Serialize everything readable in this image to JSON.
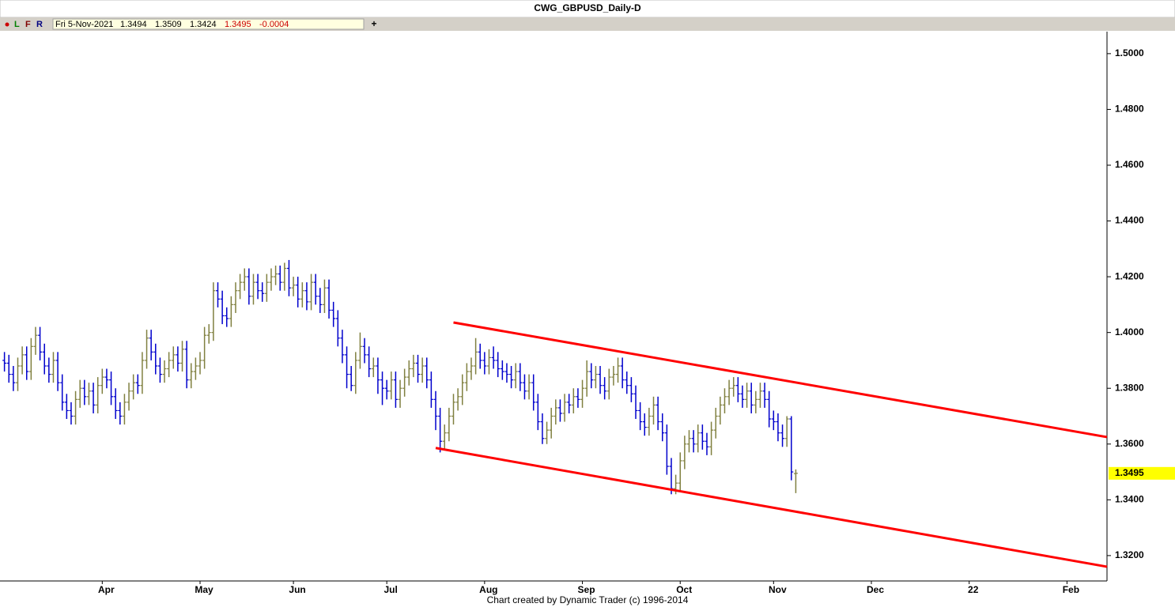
{
  "header": {
    "markers": [
      "L",
      "F",
      "R"
    ],
    "date": "Fri 5-Nov-2021",
    "open": "1.3494",
    "high": "1.3509",
    "low": "1.3424",
    "close": "1.3495",
    "change": "-0.0004"
  },
  "chart_data": {
    "type": "ohlc",
    "title": "CWG_GBPUSD_Daily-D",
    "caption": "Chart created by Dynamic Trader  (c) 1996-2014",
    "up_color": "#808040",
    "down_color": "#0000cc",
    "open": [
      1.39,
      1.389,
      1.385,
      1.382,
      1.388,
      1.392,
      1.386,
      1.395,
      1.399,
      1.393,
      1.388,
      1.385,
      1.39,
      1.382,
      1.375,
      1.372,
      1.37,
      1.376,
      1.38,
      1.377,
      1.379,
      1.374,
      1.381,
      1.384,
      1.383,
      1.377,
      1.372,
      1.37,
      1.375,
      1.379,
      1.382,
      1.381,
      1.39,
      1.398,
      1.393,
      1.388,
      1.385,
      1.387,
      1.39,
      1.392,
      1.389,
      1.394,
      1.383,
      1.386,
      1.388,
      1.39,
      1.399,
      1.4,
      1.415,
      1.412,
      1.406,
      1.405,
      1.41,
      1.415,
      1.418,
      1.42,
      1.413,
      1.418,
      1.415,
      1.414,
      1.418,
      1.42,
      1.421,
      1.418,
      1.423,
      1.416,
      1.417,
      1.412,
      1.415,
      1.411,
      1.418,
      1.413,
      1.41,
      1.416,
      1.408,
      1.405,
      1.398,
      1.392,
      1.385,
      1.381,
      1.39,
      1.395,
      1.392,
      1.387,
      1.388,
      1.383,
      1.38,
      1.379,
      1.383,
      1.376,
      1.38,
      1.384,
      1.387,
      1.389,
      1.385,
      1.388,
      1.383,
      1.376,
      1.37,
      1.361,
      1.364,
      1.37,
      1.375,
      1.377,
      1.382,
      1.386,
      1.388,
      1.393,
      1.39,
      1.388,
      1.391,
      1.39,
      1.387,
      1.386,
      1.385,
      1.383,
      1.386,
      1.382,
      1.379,
      1.382,
      1.375,
      1.368,
      1.362,
      1.365,
      1.37,
      1.373,
      1.371,
      1.375,
      1.374,
      1.377,
      1.376,
      1.38,
      1.386,
      1.383,
      1.385,
      1.381,
      1.379,
      1.384,
      1.385,
      1.388,
      1.383,
      1.381,
      1.378,
      1.372,
      1.368,
      1.366,
      1.37,
      1.374,
      1.368,
      1.364,
      1.352,
      1.344,
      1.346,
      1.354,
      1.36,
      1.362,
      1.36,
      1.364,
      1.361,
      1.359,
      1.365,
      1.37,
      1.374,
      1.377,
      1.38,
      1.381,
      1.378,
      1.376,
      1.379,
      1.374,
      1.376,
      1.379,
      1.376,
      1.369,
      1.368,
      1.364,
      1.362,
      1.369,
      1.3494
    ],
    "high": [
      1.393,
      1.392,
      1.388,
      1.391,
      1.395,
      1.395,
      1.398,
      1.402,
      1.402,
      1.396,
      1.391,
      1.393,
      1.393,
      1.385,
      1.378,
      1.375,
      1.379,
      1.383,
      1.383,
      1.382,
      1.382,
      1.384,
      1.387,
      1.387,
      1.386,
      1.38,
      1.375,
      1.378,
      1.382,
      1.385,
      1.385,
      1.393,
      1.401,
      1.401,
      1.396,
      1.391,
      1.39,
      1.393,
      1.395,
      1.395,
      1.397,
      1.397,
      1.389,
      1.391,
      1.393,
      1.402,
      1.403,
      1.418,
      1.418,
      1.415,
      1.409,
      1.413,
      1.418,
      1.421,
      1.423,
      1.423,
      1.421,
      1.421,
      1.418,
      1.421,
      1.423,
      1.424,
      1.424,
      1.425,
      1.426,
      1.42,
      1.42,
      1.418,
      1.418,
      1.421,
      1.421,
      1.416,
      1.419,
      1.419,
      1.411,
      1.408,
      1.401,
      1.395,
      1.388,
      1.393,
      1.4,
      1.398,
      1.395,
      1.391,
      1.391,
      1.386,
      1.383,
      1.386,
      1.386,
      1.383,
      1.387,
      1.39,
      1.392,
      1.392,
      1.391,
      1.391,
      1.386,
      1.379,
      1.373,
      1.367,
      1.373,
      1.378,
      1.38,
      1.385,
      1.389,
      1.391,
      1.398,
      1.396,
      1.393,
      1.394,
      1.395,
      1.393,
      1.39,
      1.389,
      1.388,
      1.389,
      1.389,
      1.385,
      1.385,
      1.385,
      1.378,
      1.371,
      1.368,
      1.373,
      1.376,
      1.376,
      1.378,
      1.378,
      1.38,
      1.38,
      1.383,
      1.39,
      1.389,
      1.388,
      1.388,
      1.384,
      1.387,
      1.388,
      1.391,
      1.391,
      1.386,
      1.384,
      1.381,
      1.375,
      1.371,
      1.373,
      1.377,
      1.377,
      1.371,
      1.367,
      1.355,
      1.349,
      1.357,
      1.363,
      1.365,
      1.365,
      1.367,
      1.367,
      1.364,
      1.368,
      1.373,
      1.377,
      1.38,
      1.383,
      1.384,
      1.384,
      1.381,
      1.382,
      1.382,
      1.379,
      1.382,
      1.382,
      1.379,
      1.372,
      1.371,
      1.367,
      1.37,
      1.37,
      1.3509
    ],
    "low": [
      1.386,
      1.382,
      1.379,
      1.379,
      1.385,
      1.383,
      1.383,
      1.392,
      1.39,
      1.385,
      1.382,
      1.382,
      1.379,
      1.372,
      1.369,
      1.367,
      1.367,
      1.373,
      1.374,
      1.374,
      1.371,
      1.371,
      1.378,
      1.38,
      1.374,
      1.369,
      1.367,
      1.367,
      1.372,
      1.376,
      1.378,
      1.378,
      1.387,
      1.39,
      1.385,
      1.382,
      1.382,
      1.384,
      1.387,
      1.386,
      1.386,
      1.38,
      1.38,
      1.383,
      1.385,
      1.387,
      1.396,
      1.397,
      1.409,
      1.403,
      1.402,
      1.402,
      1.407,
      1.412,
      1.415,
      1.41,
      1.41,
      1.412,
      1.411,
      1.411,
      1.415,
      1.417,
      1.415,
      1.415,
      1.413,
      1.413,
      1.409,
      1.409,
      1.408,
      1.408,
      1.41,
      1.407,
      1.407,
      1.405,
      1.402,
      1.395,
      1.389,
      1.38,
      1.379,
      1.378,
      1.387,
      1.389,
      1.384,
      1.384,
      1.378,
      1.374,
      1.376,
      1.376,
      1.373,
      1.373,
      1.377,
      1.381,
      1.384,
      1.382,
      1.382,
      1.38,
      1.373,
      1.365,
      1.357,
      1.358,
      1.361,
      1.367,
      1.372,
      1.374,
      1.379,
      1.383,
      1.385,
      1.387,
      1.385,
      1.385,
      1.387,
      1.384,
      1.383,
      1.382,
      1.38,
      1.38,
      1.379,
      1.376,
      1.376,
      1.372,
      1.365,
      1.36,
      1.36,
      1.362,
      1.367,
      1.368,
      1.368,
      1.371,
      1.371,
      1.373,
      1.373,
      1.377,
      1.38,
      1.38,
      1.378,
      1.376,
      1.376,
      1.381,
      1.382,
      1.38,
      1.378,
      1.375,
      1.369,
      1.365,
      1.363,
      1.363,
      1.367,
      1.365,
      1.361,
      1.349,
      1.342,
      1.342,
      1.343,
      1.351,
      1.357,
      1.357,
      1.357,
      1.358,
      1.356,
      1.356,
      1.362,
      1.367,
      1.371,
      1.374,
      1.377,
      1.375,
      1.373,
      1.373,
      1.371,
      1.371,
      1.373,
      1.373,
      1.366,
      1.365,
      1.361,
      1.359,
      1.359,
      1.347,
      1.3424
    ],
    "close": [
      1.389,
      1.385,
      1.382,
      1.388,
      1.392,
      1.386,
      1.395,
      1.399,
      1.393,
      1.388,
      1.385,
      1.39,
      1.382,
      1.375,
      1.372,
      1.37,
      1.376,
      1.38,
      1.377,
      1.379,
      1.374,
      1.381,
      1.384,
      1.383,
      1.377,
      1.372,
      1.37,
      1.375,
      1.379,
      1.382,
      1.381,
      1.39,
      1.398,
      1.393,
      1.388,
      1.385,
      1.387,
      1.39,
      1.392,
      1.389,
      1.394,
      1.383,
      1.386,
      1.388,
      1.39,
      1.399,
      1.4,
      1.415,
      1.412,
      1.406,
      1.405,
      1.41,
      1.415,
      1.418,
      1.42,
      1.413,
      1.418,
      1.415,
      1.414,
      1.418,
      1.42,
      1.421,
      1.418,
      1.423,
      1.416,
      1.417,
      1.412,
      1.415,
      1.411,
      1.418,
      1.413,
      1.41,
      1.416,
      1.408,
      1.405,
      1.398,
      1.392,
      1.385,
      1.381,
      1.39,
      1.395,
      1.392,
      1.387,
      1.388,
      1.383,
      1.38,
      1.379,
      1.383,
      1.376,
      1.38,
      1.384,
      1.387,
      1.389,
      1.385,
      1.388,
      1.383,
      1.376,
      1.37,
      1.361,
      1.364,
      1.37,
      1.375,
      1.377,
      1.382,
      1.386,
      1.388,
      1.393,
      1.39,
      1.388,
      1.391,
      1.39,
      1.387,
      1.386,
      1.385,
      1.383,
      1.386,
      1.382,
      1.379,
      1.382,
      1.375,
      1.368,
      1.362,
      1.365,
      1.37,
      1.373,
      1.371,
      1.375,
      1.374,
      1.377,
      1.376,
      1.38,
      1.386,
      1.383,
      1.385,
      1.381,
      1.379,
      1.384,
      1.385,
      1.388,
      1.383,
      1.381,
      1.378,
      1.372,
      1.368,
      1.366,
      1.37,
      1.374,
      1.368,
      1.364,
      1.352,
      1.344,
      1.346,
      1.354,
      1.36,
      1.362,
      1.36,
      1.364,
      1.361,
      1.359,
      1.365,
      1.37,
      1.374,
      1.377,
      1.38,
      1.381,
      1.378,
      1.376,
      1.379,
      1.374,
      1.376,
      1.379,
      1.376,
      1.369,
      1.368,
      1.364,
      1.362,
      1.369,
      1.35,
      1.3495
    ],
    "xlim": [
      -1,
      248
    ],
    "xticks": [
      {
        "value": 22,
        "label": "Apr"
      },
      {
        "value": 44,
        "label": "May"
      },
      {
        "value": 65,
        "label": "Jun"
      },
      {
        "value": 86,
        "label": "Jul"
      },
      {
        "value": 108,
        "label": "Aug"
      },
      {
        "value": 130,
        "label": "Sep"
      },
      {
        "value": 152,
        "label": "Oct"
      },
      {
        "value": 173,
        "label": "Nov"
      },
      {
        "value": 195,
        "label": "Dec"
      },
      {
        "value": 217,
        "label": "22"
      },
      {
        "value": 239,
        "label": "Feb"
      }
    ],
    "ylim": [
      1.3109,
      1.5079
    ],
    "yticks": [
      {
        "value": 1.32,
        "label": "1.3200"
      },
      {
        "value": 1.34,
        "label": "1.3400"
      },
      {
        "value": 1.36,
        "label": "1.3600"
      },
      {
        "value": 1.38,
        "label": "1.3800"
      },
      {
        "value": 1.4,
        "label": "1.4000"
      },
      {
        "value": 1.42,
        "label": "1.4200"
      },
      {
        "value": 1.44,
        "label": "1.4400"
      },
      {
        "value": 1.46,
        "label": "1.4600"
      },
      {
        "value": 1.48,
        "label": "1.4800"
      },
      {
        "value": 1.5,
        "label": "1.5000"
      }
    ],
    "trendlines": [
      {
        "x": [
          101,
          248
        ],
        "y": [
          1.4036,
          1.3625
        ],
        "color": "#ff0000"
      },
      {
        "x": [
          97,
          248
        ],
        "y": [
          1.3586,
          1.316
        ],
        "color": "#ff0000"
      }
    ],
    "last_price": 1.3495,
    "last_price_color": "#ffff00"
  }
}
